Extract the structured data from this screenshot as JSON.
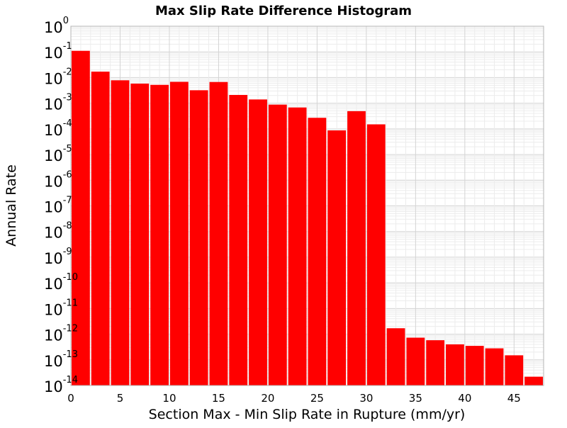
{
  "chart_data": {
    "type": "bar",
    "title": "Max Slip Rate Difference Histogram",
    "xlabel": "Section Max - Min Slip Rate in Rupture (mm/yr)",
    "ylabel": "Annual Rate",
    "y_scale": "log",
    "xlim": [
      0,
      48
    ],
    "ylim": [
      1e-14,
      1
    ],
    "x_ticks": [
      0,
      5,
      10,
      15,
      20,
      25,
      30,
      35,
      40,
      45
    ],
    "y_tick_exponents": [
      0,
      -1,
      -2,
      -3,
      -4,
      -5,
      -6,
      -7,
      -8,
      -9,
      -10,
      -11,
      -12,
      -13,
      -14
    ],
    "y_tick_base": "10",
    "grid": true,
    "bar_color": "#ff0000",
    "bin_width": 2,
    "bin_starts": [
      0,
      2,
      4,
      6,
      8,
      10,
      12,
      14,
      16,
      18,
      20,
      22,
      24,
      26,
      28,
      30,
      32,
      34,
      36,
      38,
      40,
      42,
      44,
      46
    ],
    "values": [
      0.11,
      0.017,
      0.0078,
      0.0058,
      0.0052,
      0.0068,
      0.0032,
      0.0067,
      0.0021,
      0.0014,
      0.00088,
      0.00068,
      0.00027,
      8.7e-05,
      0.00049,
      0.00015,
      1.7e-12,
      7.3e-13,
      5.8e-13,
      4e-13,
      3.5e-13,
      2.8e-13,
      1.5e-13,
      2.2e-14
    ]
  }
}
